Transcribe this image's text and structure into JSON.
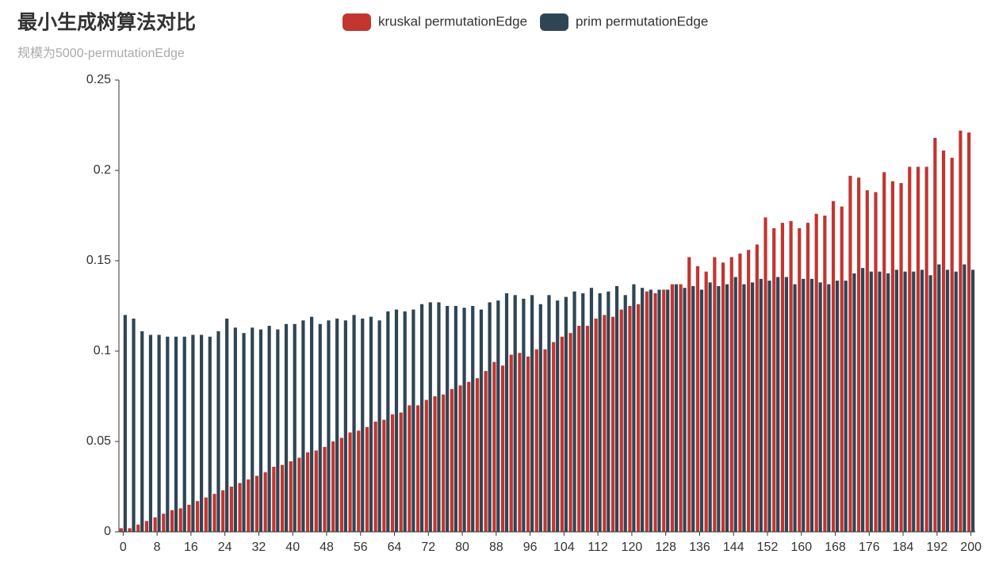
{
  "chart_data": {
    "type": "bar",
    "title": "最小生成树算法对比",
    "subtitle": "规模为5000-permutationEdge",
    "categories": [
      0,
      null,
      null,
      null,
      8,
      null,
      null,
      null,
      16,
      null,
      null,
      null,
      24,
      null,
      null,
      null,
      32,
      null,
      null,
      null,
      40,
      null,
      null,
      null,
      48,
      null,
      null,
      null,
      56,
      null,
      null,
      null,
      64,
      null,
      null,
      null,
      72,
      null,
      null,
      null,
      80,
      null,
      null,
      null,
      88,
      null,
      null,
      null,
      96,
      null,
      null,
      null,
      104,
      null,
      null,
      null,
      112,
      null,
      null,
      null,
      120,
      null,
      null,
      null,
      128,
      null,
      null,
      null,
      136,
      null,
      null,
      null,
      144,
      null,
      null,
      null,
      152,
      null,
      null,
      null,
      160,
      null,
      null,
      null,
      168,
      null,
      null,
      null,
      176,
      null,
      null,
      null,
      184,
      null,
      null,
      null,
      192,
      null,
      null,
      null,
      200
    ],
    "series": [
      {
        "name": "kruskal permutationEdge",
        "color": "#c23531",
        "values": [
          0.002,
          0.002,
          0.004,
          0.006,
          0.008,
          0.01,
          0.012,
          0.013,
          0.015,
          0.017,
          0.019,
          0.021,
          0.023,
          0.025,
          0.027,
          0.029,
          0.031,
          0.033,
          0.036,
          0.037,
          0.039,
          0.041,
          0.044,
          0.045,
          0.047,
          0.05,
          0.052,
          0.055,
          0.056,
          0.058,
          0.061,
          0.062,
          0.065,
          0.066,
          0.07,
          0.07,
          0.073,
          0.075,
          0.076,
          0.079,
          0.081,
          0.083,
          0.085,
          0.089,
          0.094,
          0.092,
          0.098,
          0.099,
          0.097,
          0.101,
          0.101,
          0.105,
          0.108,
          0.11,
          0.114,
          0.114,
          0.118,
          0.12,
          0.119,
          0.123,
          0.125,
          0.126,
          0.133,
          0.132,
          0.134,
          0.137,
          0.137,
          0.152,
          0.147,
          0.144,
          0.152,
          0.149,
          0.152,
          0.154,
          0.156,
          0.159,
          0.174,
          0.168,
          0.171,
          0.172,
          0.168,
          0.171,
          0.176,
          0.175,
          0.183,
          0.18,
          0.197,
          0.196,
          0.189,
          0.188,
          0.199,
          0.194,
          0.193,
          0.202,
          0.202,
          0.202,
          0.218,
          0.211,
          0.207,
          0.222,
          0.221
        ]
      },
      {
        "name": "prim permutationEdge",
        "color": "#2f4554",
        "values": [
          0.12,
          0.118,
          0.111,
          0.109,
          0.109,
          0.108,
          0.108,
          0.108,
          0.109,
          0.109,
          0.108,
          0.111,
          0.118,
          0.113,
          0.11,
          0.113,
          0.112,
          0.114,
          0.112,
          0.115,
          0.115,
          0.117,
          0.119,
          0.115,
          0.117,
          0.118,
          0.117,
          0.12,
          0.118,
          0.119,
          0.117,
          0.122,
          0.123,
          0.122,
          0.123,
          0.126,
          0.127,
          0.127,
          0.125,
          0.125,
          0.124,
          0.125,
          0.123,
          0.127,
          0.128,
          0.132,
          0.131,
          0.129,
          0.131,
          0.126,
          0.131,
          0.128,
          0.13,
          0.133,
          0.132,
          0.135,
          0.132,
          0.133,
          0.136,
          0.131,
          0.137,
          0.135,
          0.134,
          0.134,
          0.134,
          0.137,
          0.135,
          0.136,
          0.134,
          0.138,
          0.136,
          0.137,
          0.141,
          0.137,
          0.138,
          0.14,
          0.139,
          0.141,
          0.141,
          0.137,
          0.14,
          0.14,
          0.138,
          0.137,
          0.139,
          0.139,
          0.143,
          0.146,
          0.144,
          0.144,
          0.143,
          0.145,
          0.144,
          0.144,
          0.145,
          0.142,
          0.148,
          0.145,
          0.144,
          0.148,
          0.145
        ]
      }
    ],
    "ylim": [
      0,
      0.25
    ],
    "yticks": [
      0,
      0.05,
      0.1,
      0.15,
      0.2,
      0.25
    ],
    "grid": false,
    "legend": "top"
  }
}
